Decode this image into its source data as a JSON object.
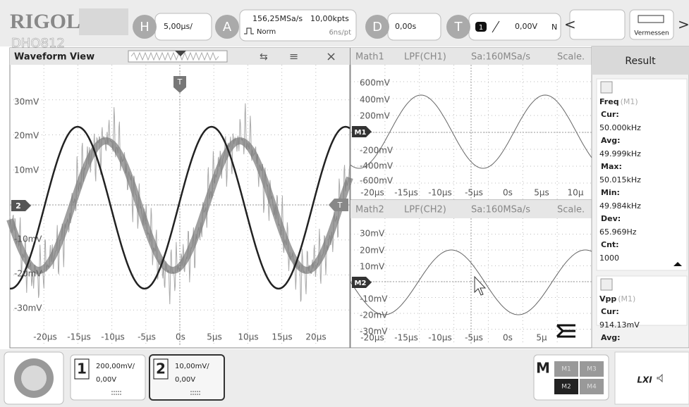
{
  "header": {
    "brand": "RIGOL",
    "model": "DHO812",
    "h_label": "H",
    "timebase": "5,00µs/",
    "a_label": "A",
    "sample_rate": "156,25MSa/s",
    "mem_depth": "10,00kpts",
    "acq_mode": "Norm",
    "ns_per_pt": "6ns/pt",
    "d_label": "D",
    "delay": "0,00s",
    "t_label": "T",
    "trig_source": "1",
    "trig_level": "0,00V",
    "trig_mode": "N",
    "measure_button": "Vermessen"
  },
  "waveform_view": {
    "title": "Waveform View",
    "trigger_marker": "T",
    "channel_marker": "2",
    "right_marker": "T",
    "y_labels": [
      "30mV",
      "20mV",
      "10mV",
      "-10mV",
      "-20mV",
      "-30mV"
    ],
    "x_labels": [
      "-20µs",
      "-15µs",
      "-10µs",
      "-5µs",
      "0s",
      "5µs",
      "10µs",
      "15µs",
      "20µs"
    ]
  },
  "math1": {
    "name": "Math1",
    "function": "LPF(CH1)",
    "sample_rate": "Sa:160MSa/s",
    "scale": "Scale.",
    "marker": "M1",
    "y_labels": [
      "600mV",
      "400mV",
      "200mV",
      "-200mV",
      "-400mV",
      "-600mV"
    ],
    "x_labels": [
      "-20µs",
      "-15µs",
      "-10µs",
      "-5µs",
      "0s",
      "5µs",
      "10µ"
    ]
  },
  "math2": {
    "name": "Math2",
    "function": "LPF(CH2)",
    "sample_rate": "Sa:160MSa/s",
    "scale": "Scale.",
    "marker": "M2",
    "y_labels": [
      "30mV",
      "20mV",
      "10mV",
      "-10mV",
      "-20mV",
      "-30mV"
    ],
    "x_labels": [
      "-20µs",
      "-15µs",
      "-10µs",
      "-5µs",
      "0s",
      "5µ"
    ]
  },
  "result": {
    "title": "Result",
    "items": [
      {
        "name": "Freq",
        "source": "(M1)",
        "rows": [
          {
            "label": "Cur:",
            "value": "50.000kHz"
          },
          {
            "label": "Avg:",
            "value": "49.999kHz"
          },
          {
            "label": "Max:",
            "value": "50.015kHz"
          },
          {
            "label": "Min:",
            "value": "49.984kHz"
          },
          {
            "label": "Dev:",
            "value": "65.969Hz"
          },
          {
            "label": "Cnt:",
            "value": "1000"
          }
        ]
      },
      {
        "name": "Vpp",
        "source": "(M1)",
        "rows": [
          {
            "label": "Cur:",
            "value": "914.13mV"
          },
          {
            "label": "Avg:"
          }
        ]
      }
    ]
  },
  "footer": {
    "ch1": {
      "number": "1",
      "scale": "200,00mV/",
      "offset": "0,00V"
    },
    "ch2": {
      "number": "2",
      "scale": "10,00mV/",
      "offset": "0,00V"
    },
    "math_label": "M",
    "math_buttons": [
      "M1",
      "M3",
      "M2",
      "M4"
    ],
    "lxi": "LXI"
  }
}
